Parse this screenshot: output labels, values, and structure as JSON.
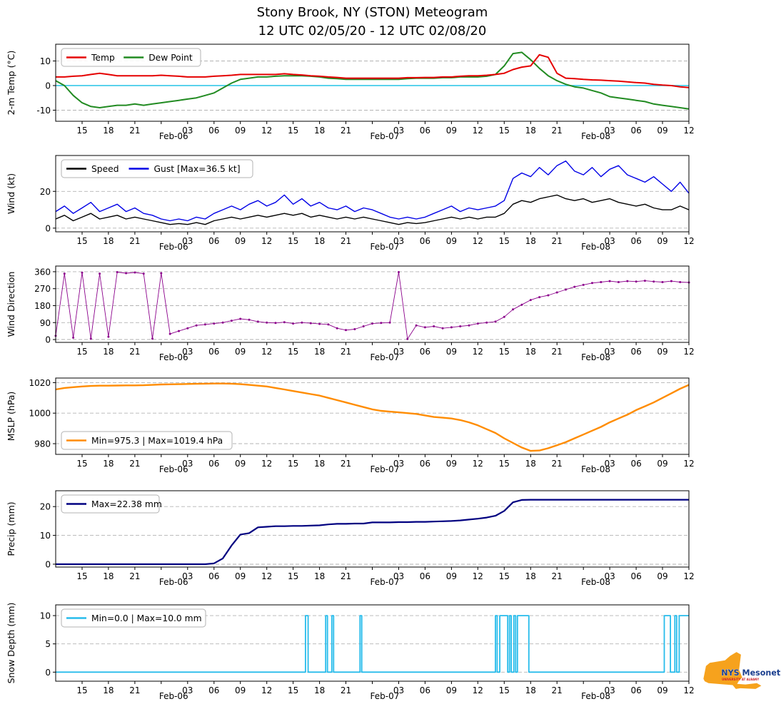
{
  "chart_data": {
    "type": "line",
    "title": "Stony Brook, NY (STON) Meteogram",
    "subtitle": "12 UTC 02/05/20 - 12 UTC 02/08/20",
    "x_axis": {
      "unit": "hours since 12 UTC 02/05/20",
      "range": [
        0,
        72
      ],
      "ticks": [
        {
          "h": 3,
          "label": "15"
        },
        {
          "h": 6,
          "label": "18"
        },
        {
          "h": 9,
          "label": "21"
        },
        {
          "h": 12,
          "label": "Feb-06",
          "day": true
        },
        {
          "h": 15,
          "label": "03"
        },
        {
          "h": 18,
          "label": "06"
        },
        {
          "h": 21,
          "label": "09"
        },
        {
          "h": 24,
          "label": "12"
        },
        {
          "h": 27,
          "label": "15"
        },
        {
          "h": 30,
          "label": "18"
        },
        {
          "h": 33,
          "label": "21"
        },
        {
          "h": 36,
          "label": "Feb-07",
          "day": true
        },
        {
          "h": 39,
          "label": "03"
        },
        {
          "h": 42,
          "label": "06"
        },
        {
          "h": 45,
          "label": "09"
        },
        {
          "h": 48,
          "label": "12"
        },
        {
          "h": 51,
          "label": "15"
        },
        {
          "h": 54,
          "label": "18"
        },
        {
          "h": 57,
          "label": "21"
        },
        {
          "h": 60,
          "label": "Feb-08",
          "day": true
        },
        {
          "h": 63,
          "label": "03"
        },
        {
          "h": 66,
          "label": "06"
        },
        {
          "h": 69,
          "label": "09"
        },
        {
          "h": 72,
          "label": "12"
        }
      ]
    },
    "panels": [
      {
        "id": "temp",
        "ylabel": "2-m Temp (°C)",
        "ylim": [
          -14.5,
          16.8
        ],
        "yticks": [
          -10,
          0,
          10
        ],
        "refline": {
          "value": 0,
          "color": "#35c8e8"
        },
        "legend_pos": "upper-left",
        "legend": [
          {
            "label": "Temp",
            "color": "#e50000"
          },
          {
            "label": "Dew Point",
            "color": "#228b22"
          }
        ],
        "series": [
          {
            "id": "dew-point",
            "name": "Dew Point",
            "color": "#228b22",
            "width": 2,
            "values": [
              2.0,
              0.0,
              -4.0,
              -7.0,
              -8.5,
              -9.0,
              -8.5,
              -8.0,
              -8.0,
              -7.5,
              -8.0,
              -7.5,
              -7.0,
              -6.5,
              -6.0,
              -5.5,
              -5.0,
              -4.0,
              -3.0,
              -1.0,
              1.0,
              2.5,
              3.0,
              3.5,
              3.5,
              3.8,
              4.0,
              4.0,
              4.0,
              3.8,
              3.5,
              3.0,
              2.8,
              2.5,
              2.5,
              2.5,
              2.5,
              2.5,
              2.5,
              2.5,
              2.8,
              3.0,
              3.0,
              3.0,
              3.2,
              3.2,
              3.5,
              3.5,
              3.5,
              3.8,
              4.5,
              8.0,
              13.0,
              13.5,
              10.5,
              7.0,
              4.0,
              2.0,
              0.5,
              -0.5,
              -1.0,
              -2.0,
              -3.0,
              -4.5,
              -5.0,
              -5.5,
              -6.0,
              -6.5,
              -7.5,
              -8.0,
              -8.5,
              -9.0,
              -9.5
            ]
          },
          {
            "id": "temp",
            "name": "Temp",
            "color": "#e50000",
            "width": 2,
            "values": [
              3.5,
              3.5,
              3.8,
              4.0,
              4.5,
              5.0,
              4.5,
              4.0,
              4.0,
              4.0,
              4.0,
              4.0,
              4.2,
              4.0,
              3.8,
              3.5,
              3.5,
              3.5,
              3.8,
              4.0,
              4.2,
              4.5,
              4.5,
              4.5,
              4.5,
              4.5,
              4.8,
              4.5,
              4.3,
              4.0,
              3.8,
              3.5,
              3.3,
              3.0,
              3.0,
              3.0,
              3.0,
              3.0,
              3.0,
              3.0,
              3.2,
              3.2,
              3.3,
              3.3,
              3.5,
              3.5,
              3.8,
              4.0,
              4.0,
              4.2,
              4.5,
              5.0,
              6.5,
              7.5,
              8.0,
              12.5,
              11.5,
              5.0,
              3.0,
              2.8,
              2.5,
              2.3,
              2.2,
              2.0,
              1.8,
              1.5,
              1.2,
              1.0,
              0.5,
              0.2,
              0.0,
              -0.5,
              -0.8
            ]
          }
        ]
      },
      {
        "id": "wind",
        "ylabel": "Wind (kt)",
        "ylim": [
          -2,
          39.5
        ],
        "yticks": [
          0,
          20
        ],
        "legend_pos": "upper-left",
        "legend": [
          {
            "label": "Speed",
            "color": "#000000"
          },
          {
            "label": "Gust [Max=36.5 kt]",
            "color": "#0000e6"
          }
        ],
        "stats": {
          "gust_max_kt": 36.5
        },
        "series": [
          {
            "id": "wind-gust",
            "name": "Gust",
            "color": "#0000e6",
            "width": 1.4,
            "values": [
              9,
              12,
              8,
              11,
              14,
              9,
              11,
              13,
              9,
              11,
              8,
              7,
              5,
              4,
              5,
              4,
              6,
              5,
              8,
              10,
              12,
              10,
              13,
              15,
              12,
              14,
              18,
              13,
              16,
              12,
              14,
              11,
              10,
              12,
              9,
              11,
              10,
              8,
              6,
              5,
              6,
              5,
              6,
              8,
              10,
              12,
              9,
              11,
              10,
              11,
              12,
              15,
              27,
              30,
              28,
              33,
              29,
              34,
              36.5,
              31,
              29,
              33,
              28,
              32,
              34,
              29,
              27,
              25,
              28,
              24,
              20,
              25,
              19
            ]
          },
          {
            "id": "wind-speed",
            "name": "Speed",
            "color": "#000000",
            "width": 1.4,
            "values": [
              5,
              7,
              4,
              6,
              8,
              5,
              6,
              7,
              5,
              6,
              5,
              4,
              3,
              2,
              2.5,
              2,
              3,
              2,
              4,
              5,
              6,
              5,
              6,
              7,
              6,
              7,
              8,
              7,
              8,
              6,
              7,
              6,
              5,
              6,
              5,
              6,
              5,
              4,
              3,
              2,
              3,
              2.5,
              3,
              4,
              5,
              6,
              5,
              6,
              5,
              6,
              6,
              8,
              13,
              15,
              14,
              16,
              17,
              18,
              16,
              15,
              16,
              14,
              15,
              16,
              14,
              13,
              12,
              13,
              11,
              10,
              10,
              12,
              10
            ]
          }
        ]
      },
      {
        "id": "wind-direction",
        "ylabel": "Wind Direction",
        "ylim": [
          -15,
          390
        ],
        "yticks": [
          0,
          90,
          180,
          270,
          360
        ],
        "series": [
          {
            "id": "wind-direction",
            "name": "Direction",
            "color": "#8b008b",
            "width": 0.9,
            "markers": true,
            "values": [
              20,
              350,
              10,
              355,
              5,
              350,
              15,
              358,
              352,
              356,
              350,
              5,
              352,
              30,
              45,
              60,
              75,
              80,
              85,
              90,
              100,
              110,
              105,
              95,
              90,
              88,
              92,
              85,
              90,
              87,
              83,
              80,
              60,
              50,
              55,
              70,
              85,
              88,
              90,
              358,
              3,
              75,
              65,
              70,
              60,
              65,
              70,
              75,
              85,
              90,
              95,
              120,
              160,
              185,
              210,
              225,
              235,
              250,
              265,
              280,
              290,
              300,
              305,
              310,
              305,
              310,
              308,
              312,
              308,
              305,
              310,
              305,
              303
            ]
          }
        ]
      },
      {
        "id": "mslp",
        "ylabel": "MSLP (hPa)",
        "ylim": [
          973,
          1023
        ],
        "yticks": [
          980,
          1000,
          1020
        ],
        "legend_pos": "lower-left",
        "legend": [
          {
            "label": "Min=975.3 | Max=1019.4 hPa",
            "color": "#ff8c00"
          }
        ],
        "stats": {
          "min_hpa": 975.3,
          "max_hpa": 1019.4
        },
        "series": [
          {
            "id": "mslp",
            "name": "MSLP",
            "color": "#ff8c00",
            "width": 2.4,
            "values": [
              1015.5,
              1016.5,
              1017.0,
              1017.5,
              1017.8,
              1018.0,
              1018.0,
              1018.1,
              1018.2,
              1018.2,
              1018.3,
              1018.5,
              1018.8,
              1018.9,
              1019.0,
              1019.1,
              1019.2,
              1019.3,
              1019.4,
              1019.4,
              1019.3,
              1019.0,
              1018.5,
              1018.0,
              1017.5,
              1016.5,
              1015.5,
              1014.5,
              1013.5,
              1012.5,
              1011.5,
              1010.0,
              1008.5,
              1007.0,
              1005.5,
              1004.0,
              1002.5,
              1001.5,
              1001.0,
              1000.5,
              1000.0,
              999.5,
              998.5,
              997.5,
              997.0,
              996.5,
              995.5,
              994.0,
              992.0,
              989.5,
              987.0,
              983.5,
              980.5,
              977.5,
              975.3,
              975.5,
              977.0,
              979.0,
              981.0,
              983.5,
              986.0,
              988.5,
              991.0,
              994.0,
              996.5,
              999.0,
              1002.0,
              1004.5,
              1007.0,
              1010.0,
              1013.0,
              1016.0,
              1018.5
            ]
          }
        ]
      },
      {
        "id": "precip",
        "ylabel": "Precip (mm)",
        "ylim": [
          -1,
          25.5
        ],
        "yticks": [
          0,
          10,
          20
        ],
        "legend_pos": "upper-left",
        "legend": [
          {
            "label": "Max=22.38 mm",
            "color": "#000080"
          }
        ],
        "stats": {
          "max_mm": 22.38
        },
        "series": [
          {
            "id": "precip",
            "name": "Precip",
            "color": "#000080",
            "width": 2.2,
            "values": [
              0,
              0,
              0,
              0,
              0,
              0,
              0,
              0,
              0,
              0,
              0,
              0,
              0,
              0,
              0,
              0,
              0,
              0,
              0.3,
              2,
              6.5,
              10.3,
              10.8,
              12.8,
              13,
              13.2,
              13.2,
              13.3,
              13.3,
              13.4,
              13.5,
              13.8,
              14,
              14,
              14.1,
              14.1,
              14.5,
              14.5,
              14.5,
              14.6,
              14.6,
              14.7,
              14.7,
              14.8,
              14.9,
              15,
              15.2,
              15.5,
              15.8,
              16.2,
              16.8,
              18.5,
              21.5,
              22.3,
              22.38,
              22.38,
              22.38,
              22.38,
              22.38,
              22.38,
              22.38,
              22.38,
              22.38,
              22.38,
              22.38,
              22.38,
              22.38,
              22.38,
              22.38,
              22.38,
              22.38,
              22.38,
              22.38
            ]
          }
        ]
      },
      {
        "id": "snow-depth",
        "ylabel": "Snow Depth (mm)",
        "ylim": [
          -1.6,
          11.9
        ],
        "yticks": [
          0,
          5,
          10
        ],
        "legend_pos": "upper-left",
        "legend": [
          {
            "label": "Min=0.0 | Max=10.0 mm",
            "color": "#27bceb"
          }
        ],
        "stats": {
          "min_mm": 0.0,
          "max_mm": 10.0
        },
        "series": [
          {
            "id": "snow-depth",
            "name": "Snow Depth",
            "color": "#27bceb",
            "width": 1.8,
            "points": [
              [
                0,
                0
              ],
              [
                28.4,
                0
              ],
              [
                28.4,
                10
              ],
              [
                28.7,
                10
              ],
              [
                28.7,
                0
              ],
              [
                30.7,
                0
              ],
              [
                30.7,
                10
              ],
              [
                30.9,
                10
              ],
              [
                30.9,
                0
              ],
              [
                31.4,
                0
              ],
              [
                31.4,
                10
              ],
              [
                31.6,
                10
              ],
              [
                31.6,
                0
              ],
              [
                34.6,
                0
              ],
              [
                34.6,
                10
              ],
              [
                34.8,
                10
              ],
              [
                34.8,
                0
              ],
              [
                50,
                0
              ],
              [
                50,
                10
              ],
              [
                50.2,
                10
              ],
              [
                50.2,
                0
              ],
              [
                50.5,
                0
              ],
              [
                50.5,
                10
              ],
              [
                51.4,
                10
              ],
              [
                51.4,
                0
              ],
              [
                51.6,
                0
              ],
              [
                51.6,
                10
              ],
              [
                51.8,
                10
              ],
              [
                51.8,
                0
              ],
              [
                52.1,
                0
              ],
              [
                52.1,
                10
              ],
              [
                52.3,
                10
              ],
              [
                52.3,
                0
              ],
              [
                52.5,
                0
              ],
              [
                52.5,
                10
              ],
              [
                53.8,
                10
              ],
              [
                53.8,
                0
              ],
              [
                69.2,
                0
              ],
              [
                69.2,
                10
              ],
              [
                69.9,
                10
              ],
              [
                69.9,
                0
              ],
              [
                70.4,
                0
              ],
              [
                70.4,
                10
              ],
              [
                70.6,
                10
              ],
              [
                70.6,
                0
              ],
              [
                70.9,
                0
              ],
              [
                70.9,
                10
              ],
              [
                72,
                10
              ]
            ]
          }
        ]
      }
    ]
  },
  "logo": {
    "name": "NYS Mesonet",
    "subtitle": "UNIVERSITY AT ALBANY",
    "orange": "#f6a21d",
    "navy": "#1b3f8f",
    "red": "#cc2229"
  }
}
